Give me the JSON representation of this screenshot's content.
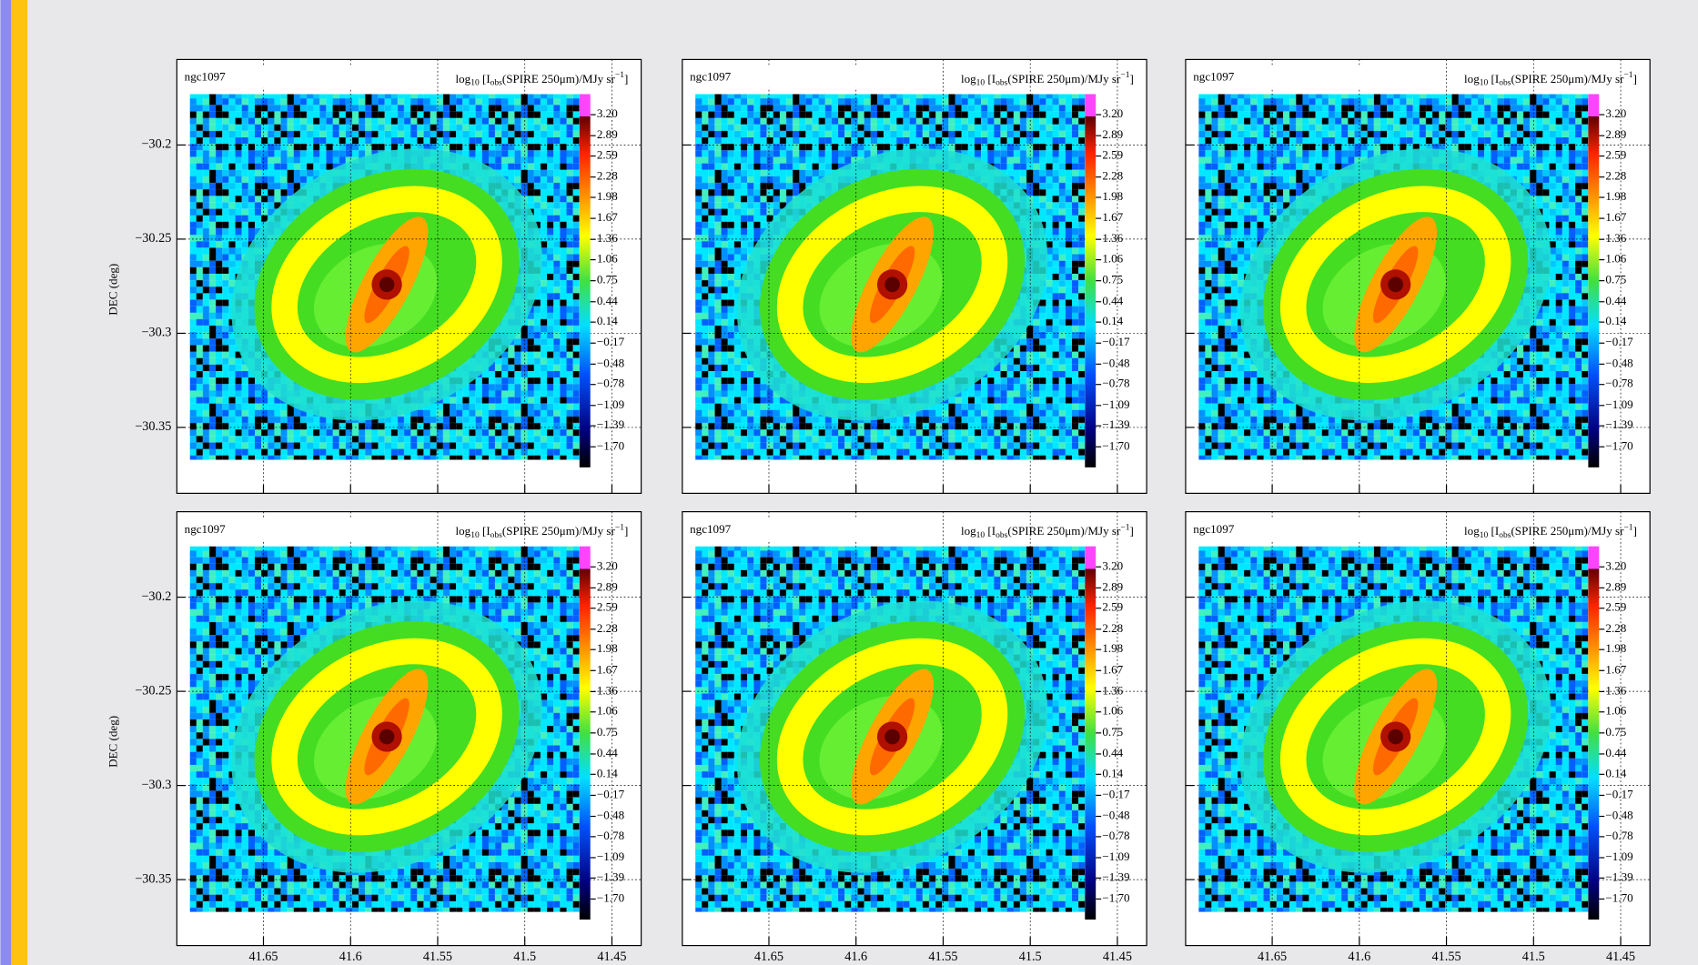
{
  "slide": {
    "panel_label": "ngc1097",
    "title_parts": [
      "log",
      "10",
      " [I",
      "obs",
      "(SPIRE 250μm)/MJy sr",
      "−1",
      "]"
    ],
    "colorbar_lim": [
      -2.003,
      3.503
    ],
    "colorbar_ticks": [
      {
        "value": 3.2,
        "label": "3.20"
      },
      {
        "value": 2.89,
        "label": "2.89"
      },
      {
        "value": 2.59,
        "label": "2.59"
      },
      {
        "value": 2.28,
        "label": "2.28"
      },
      {
        "value": 1.98,
        "label": "1.98"
      },
      {
        "value": 1.67,
        "label": "1.67"
      },
      {
        "value": 1.36,
        "label": "1.36"
      },
      {
        "value": 1.06,
        "label": "1.06"
      },
      {
        "value": 0.75,
        "label": "0.75"
      },
      {
        "value": 0.44,
        "label": "0.44"
      },
      {
        "value": 0.14,
        "label": "0.14"
      },
      {
        "value": -0.17,
        "label": "−0.17"
      },
      {
        "value": -0.48,
        "label": "−0.48"
      },
      {
        "value": -0.78,
        "label": "−0.78"
      },
      {
        "value": -1.09,
        "label": "−1.09"
      },
      {
        "value": -1.39,
        "label": "−1.39"
      },
      {
        "value": -1.7,
        "label": "−1.70"
      }
    ],
    "dec_label": "DEC (deg)",
    "dec_lim": [
      -30.1546,
      -30.385
    ],
    "dec_ticks": [
      {
        "value": -30.2,
        "label": "−30.2"
      },
      {
        "value": -30.25,
        "label": "−30.25"
      },
      {
        "value": -30.3,
        "label": "−30.3"
      },
      {
        "value": -30.35,
        "label": "−30.35"
      }
    ],
    "ra_lim": [
      41.6997,
      41.4332
    ],
    "ra_ticks": [
      41.65,
      41.6,
      41.55,
      41.5,
      41.45
    ]
  }
}
